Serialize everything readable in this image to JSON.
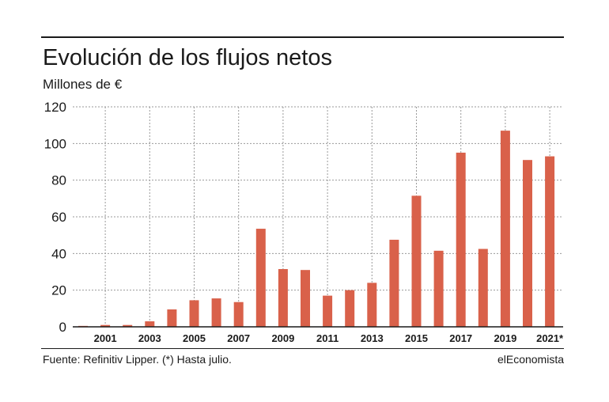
{
  "header": {
    "title": "Evolución de los flujos netos",
    "subtitle": "Millones de €"
  },
  "footer": {
    "source": "Fuente: Refinitiv Lipper. (*) Hasta julio.",
    "brand": "elEconomista"
  },
  "colors": {
    "bar": "#d9614a",
    "grid": "#9a9a9a",
    "axis": "#1a1a1a",
    "text": "#1a1a1a"
  },
  "chart_data": {
    "type": "bar",
    "title": "Evolución de los flujos netos",
    "subtitle": "Millones de €",
    "xlabel": "",
    "ylabel": "",
    "ylim": [
      0,
      120
    ],
    "yticks": [
      0,
      20,
      40,
      60,
      80,
      100,
      120
    ],
    "grid": true,
    "categories": [
      "2000",
      "2001",
      "2002",
      "2003",
      "2004",
      "2005",
      "2006",
      "2007",
      "2008",
      "2009",
      "2010",
      "2011",
      "2012",
      "2013",
      "2014",
      "2015",
      "2016",
      "2017",
      "2018",
      "2019",
      "2020",
      "2021*"
    ],
    "xtick_labels": [
      "2001",
      "2003",
      "2005",
      "2007",
      "2009",
      "2011",
      "2013",
      "2015",
      "2017",
      "2019",
      "2021*"
    ],
    "values": [
      0.5,
      1,
      1,
      3,
      9.5,
      14.5,
      15.5,
      13.5,
      53.5,
      31.5,
      31,
      17,
      20,
      24,
      47.5,
      71.5,
      41.5,
      95,
      42.5,
      107,
      91,
      93
    ]
  }
}
